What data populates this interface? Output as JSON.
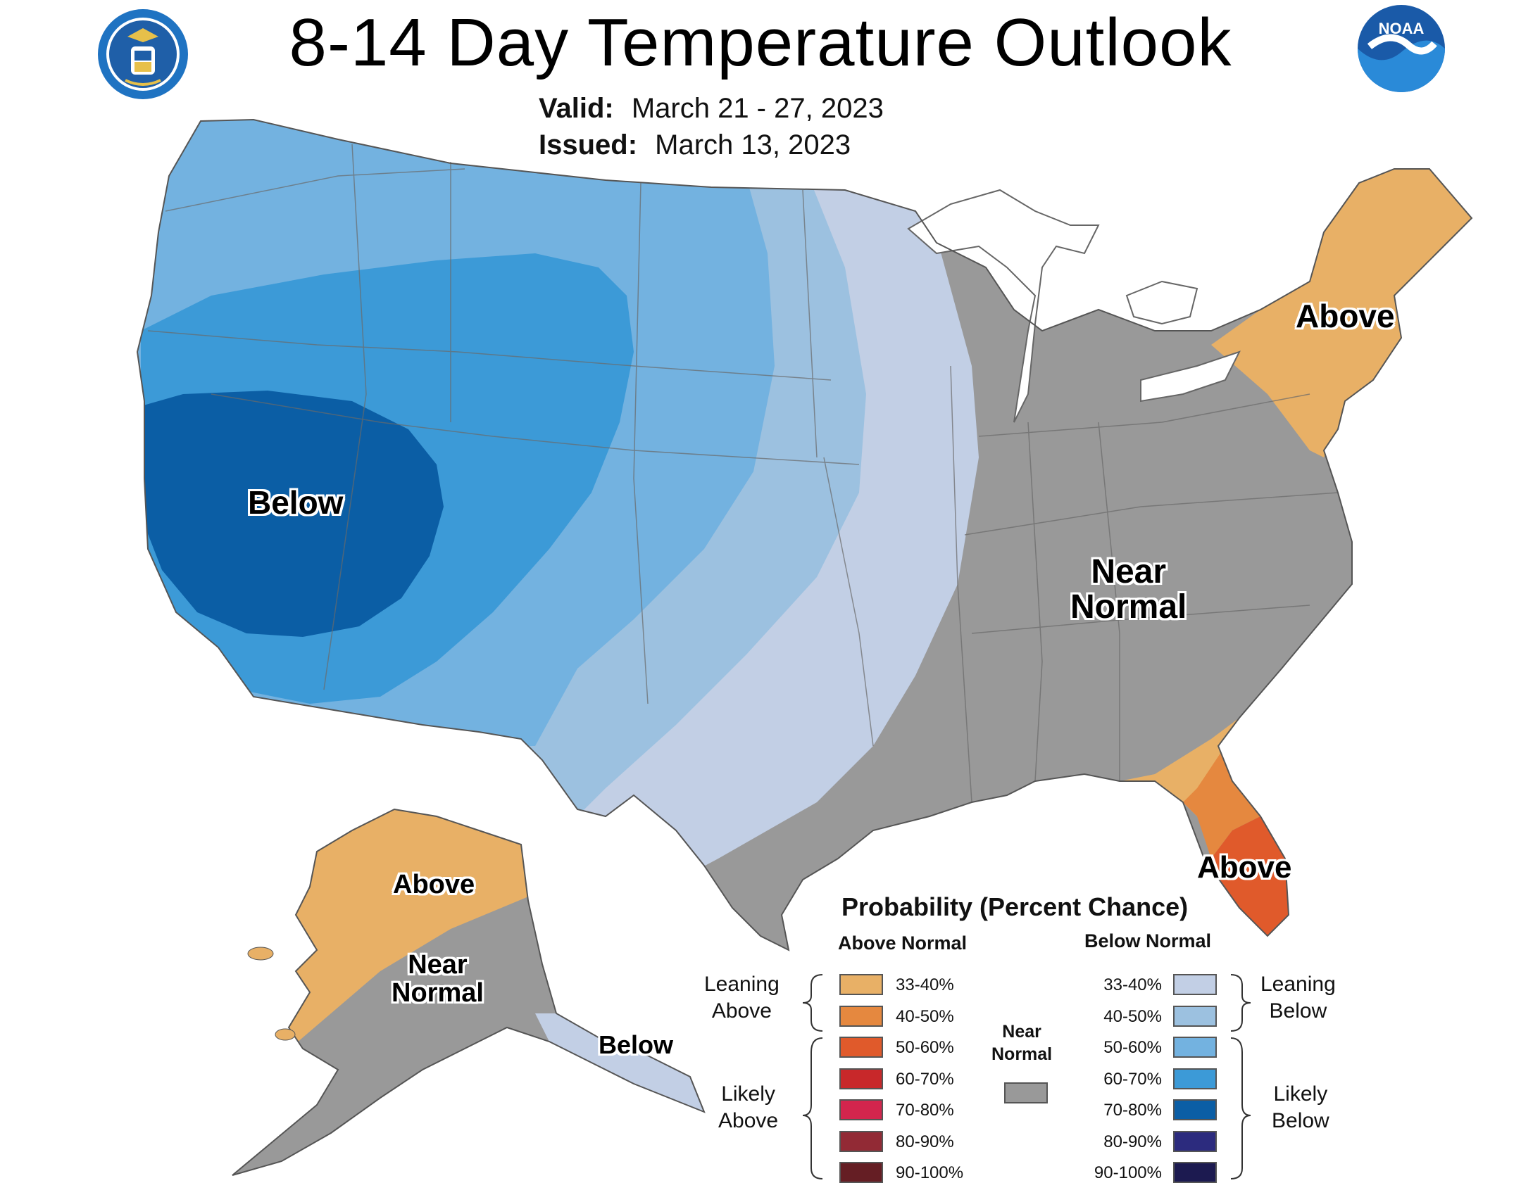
{
  "header": {
    "title": "8-14 Day Temperature Outlook",
    "valid_label": "Valid:",
    "valid_value": "March 21 - 27, 2023",
    "issued_label": "Issued:",
    "issued_value": "March 13, 2023",
    "noaa_logo_text": "NOAA"
  },
  "map_labels": {
    "west": "Below",
    "northeast": "Above",
    "east_line1": "Near",
    "east_line2": "Normal",
    "florida": "Above",
    "alaska_north": "Above",
    "alaska_south_line1": "Near",
    "alaska_south_line2": "Normal",
    "alaska_panhandle": "Below"
  },
  "legend": {
    "title": "Probability (Percent Chance)",
    "above_header": "Above Normal",
    "below_header": "Below Normal",
    "near_normal_line1": "Near",
    "near_normal_line2": "Normal",
    "near_normal_color": "#999999",
    "leaning_above": [
      "Leaning",
      "Above"
    ],
    "likely_above": [
      "Likely",
      "Above"
    ],
    "leaning_below": [
      "Leaning",
      "Below"
    ],
    "likely_below": [
      "Likely",
      "Below"
    ],
    "above_bins": [
      {
        "label": "33-40%",
        "color": "#e8b066"
      },
      {
        "label": "40-50%",
        "color": "#e5883f"
      },
      {
        "label": "50-60%",
        "color": "#e05a2b"
      },
      {
        "label": "60-70%",
        "color": "#c8282a"
      },
      {
        "label": "70-80%",
        "color": "#d3254d"
      },
      {
        "label": "80-90%",
        "color": "#922a35"
      },
      {
        "label": "90-100%",
        "color": "#651e24"
      }
    ],
    "below_bins": [
      {
        "label": "33-40%",
        "color": "#c2cfe5"
      },
      {
        "label": "40-50%",
        "color": "#9cc1e0"
      },
      {
        "label": "50-60%",
        "color": "#73b2e0"
      },
      {
        "label": "60-70%",
        "color": "#3c9ad7"
      },
      {
        "label": "70-80%",
        "color": "#0b5ea5"
      },
      {
        "label": "80-90%",
        "color": "#2c2b7e"
      },
      {
        "label": "90-100%",
        "color": "#1c1a50"
      }
    ]
  }
}
